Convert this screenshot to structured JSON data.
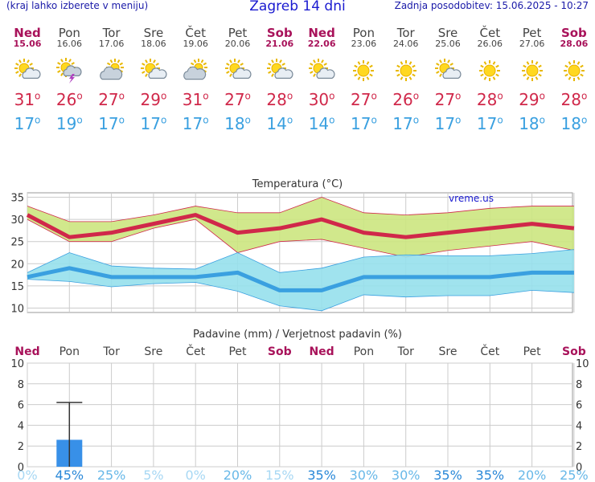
{
  "header": {
    "hint": "(kraj lahko izberete v meniju)",
    "title": "Zagreb 14 dni",
    "updated": "Zadnja posodobitev: 15.06.2025 - 10:27"
  },
  "days": [
    {
      "name": "Ned",
      "date": "15.06",
      "weekend": true,
      "icon": "sun-cloud-icon",
      "tmax": 31,
      "tmin": 17
    },
    {
      "name": "Pon",
      "date": "16.06",
      "weekend": false,
      "icon": "thunderstorm-icon",
      "tmax": 26,
      "tmin": 19
    },
    {
      "name": "Tor",
      "date": "17.06",
      "weekend": false,
      "icon": "cloudy-icon",
      "tmax": 27,
      "tmin": 17
    },
    {
      "name": "Sre",
      "date": "18.06",
      "weekend": false,
      "icon": "sun-cloud-icon",
      "tmax": 29,
      "tmin": 17
    },
    {
      "name": "Čet",
      "date": "19.06",
      "weekend": false,
      "icon": "cloudy-icon",
      "tmax": 31,
      "tmin": 17
    },
    {
      "name": "Pet",
      "date": "20.06",
      "weekend": false,
      "icon": "sun-cloud-icon",
      "tmax": 27,
      "tmin": 18
    },
    {
      "name": "Sob",
      "date": "21.06",
      "weekend": true,
      "icon": "sun-cloud-icon",
      "tmax": 28,
      "tmin": 14
    },
    {
      "name": "Ned",
      "date": "22.06",
      "weekend": true,
      "icon": "sun-cloud-icon",
      "tmax": 30,
      "tmin": 14
    },
    {
      "name": "Pon",
      "date": "23.06",
      "weekend": false,
      "icon": "sun-icon",
      "tmax": 27,
      "tmin": 17
    },
    {
      "name": "Tor",
      "date": "24.06",
      "weekend": false,
      "icon": "sun-icon",
      "tmax": 26,
      "tmin": 17
    },
    {
      "name": "Sre",
      "date": "25.06",
      "weekend": false,
      "icon": "sun-cloud-icon",
      "tmax": 27,
      "tmin": 17
    },
    {
      "name": "Čet",
      "date": "26.06",
      "weekend": false,
      "icon": "sun-icon",
      "tmax": 28,
      "tmin": 17
    },
    {
      "name": "Pet",
      "date": "27.06",
      "weekend": false,
      "icon": "sun-icon",
      "tmax": 29,
      "tmin": 18
    },
    {
      "name": "Sob",
      "date": "28.06",
      "weekend": true,
      "icon": "sun-icon",
      "tmax": 28,
      "tmin": 18
    }
  ],
  "chart_data": [
    {
      "type": "line",
      "title": "Temperatura (°C)",
      "watermark": "vreme.us",
      "ylim": [
        9,
        36
      ],
      "yticks": [
        10,
        15,
        20,
        25,
        30,
        35
      ],
      "grid": true,
      "series": [
        {
          "name": "max",
          "color": "#d0284a",
          "values": [
            31,
            26,
            27,
            29,
            31,
            27,
            28,
            30,
            27,
            26,
            27,
            28,
            29,
            28
          ],
          "band_low": [
            30,
            25,
            25,
            28,
            30,
            22.5,
            25,
            25.5,
            23.5,
            21.5,
            23,
            24,
            25,
            23
          ],
          "band_high": [
            33,
            29.5,
            29.5,
            31,
            33,
            31.5,
            31.5,
            35,
            31.5,
            31,
            31.5,
            32.5,
            33,
            33
          ],
          "band_color": "#cce680"
        },
        {
          "name": "min",
          "color": "#3aa0e0",
          "values": [
            17,
            19,
            17,
            17,
            17,
            18,
            14,
            14,
            17,
            17,
            17,
            17,
            18,
            18
          ],
          "band_low": [
            16.5,
            16,
            14.8,
            15.5,
            15.8,
            13.8,
            10.5,
            9.4,
            13,
            12.5,
            12.8,
            12.8,
            14,
            13.5
          ],
          "band_high": [
            18,
            22.5,
            19.5,
            19,
            18.8,
            22.5,
            18,
            19,
            21.5,
            22,
            21.8,
            21.8,
            22.3,
            23.2
          ],
          "band_color": "#96e0ec"
        }
      ]
    },
    {
      "type": "bar",
      "title": "Padavine (mm) / Verjetnost padavin (%)",
      "ylim": [
        0,
        10
      ],
      "yticks": [
        0,
        2,
        4,
        6,
        8,
        10
      ],
      "grid": true,
      "precip_mm": [
        0,
        2.6,
        0,
        0,
        0,
        0,
        0,
        0,
        0,
        0,
        0,
        0,
        0,
        0
      ],
      "precip_max_mm": [
        0,
        6.2,
        0,
        0,
        0,
        0,
        0,
        0,
        0,
        0,
        0,
        0,
        0,
        0
      ],
      "probability": [
        "0%",
        "45%",
        "25%",
        "5%",
        "0%",
        "20%",
        "15%",
        "35%",
        "30%",
        "30%",
        "35%",
        "35%",
        "20%",
        "25%"
      ],
      "probability_values": [
        0,
        45,
        25,
        5,
        0,
        20,
        15,
        35,
        30,
        30,
        35,
        35,
        20,
        25
      ],
      "bar_color": "#3890e8"
    }
  ],
  "colors": {
    "weekend": "#a8125a",
    "tmax": "#d0284a",
    "tmin": "#3aa0e0"
  }
}
